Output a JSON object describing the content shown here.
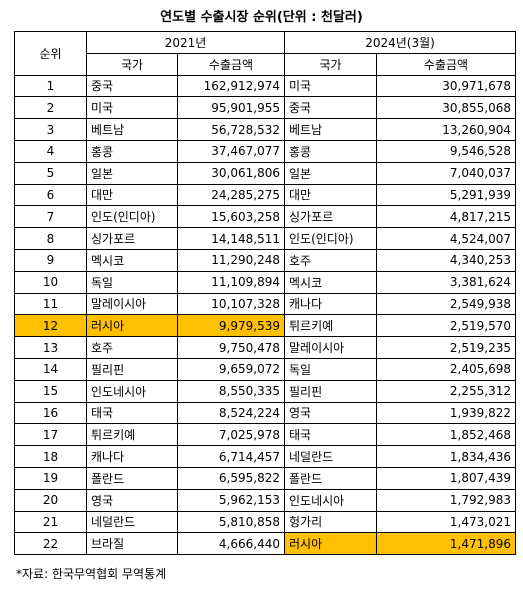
{
  "title": "연도별 수출시장 순위(단위 : 천달러)",
  "headers": {
    "rank": "순위",
    "year_left": "2021년",
    "year_right": "2024년(3월)",
    "country": "국가",
    "amount": "수출금액"
  },
  "highlight_color": "#ffc000",
  "rows": [
    {
      "rank": "1",
      "c1": "중국",
      "v1": "162,912,974",
      "c2": "미국",
      "v2": "30,971,678",
      "hl1": false,
      "hl2": false
    },
    {
      "rank": "2",
      "c1": "미국",
      "v1": "95,901,955",
      "c2": "중국",
      "v2": "30,855,068",
      "hl1": false,
      "hl2": false
    },
    {
      "rank": "3",
      "c1": "베트남",
      "v1": "56,728,532",
      "c2": "베트남",
      "v2": "13,260,904",
      "hl1": false,
      "hl2": false
    },
    {
      "rank": "4",
      "c1": "홍콩",
      "v1": "37,467,077",
      "c2": "홍콩",
      "v2": "9,546,528",
      "hl1": false,
      "hl2": false
    },
    {
      "rank": "5",
      "c1": "일본",
      "v1": "30,061,806",
      "c2": "일본",
      "v2": "7,040,037",
      "hl1": false,
      "hl2": false
    },
    {
      "rank": "6",
      "c1": "대만",
      "v1": "24,285,275",
      "c2": "대만",
      "v2": "5,291,939",
      "hl1": false,
      "hl2": false
    },
    {
      "rank": "7",
      "c1": "인도(인디아)",
      "v1": "15,603,258",
      "c2": "싱가포르",
      "v2": "4,817,215",
      "hl1": false,
      "hl2": false
    },
    {
      "rank": "8",
      "c1": "싱가포르",
      "v1": "14,148,511",
      "c2": "인도(인디아)",
      "v2": "4,524,007",
      "hl1": false,
      "hl2": false
    },
    {
      "rank": "9",
      "c1": "멕시코",
      "v1": "11,290,248",
      "c2": "호주",
      "v2": "4,340,253",
      "hl1": false,
      "hl2": false
    },
    {
      "rank": "10",
      "c1": "독일",
      "v1": "11,109,894",
      "c2": "멕시코",
      "v2": "3,381,624",
      "hl1": false,
      "hl2": false
    },
    {
      "rank": "11",
      "c1": "말레이시아",
      "v1": "10,107,328",
      "c2": "캐나다",
      "v2": "2,549,938",
      "hl1": false,
      "hl2": false
    },
    {
      "rank": "12",
      "c1": "러시아",
      "v1": "9,979,539",
      "c2": "튀르키예",
      "v2": "2,519,570",
      "hl1": true,
      "hl2": false
    },
    {
      "rank": "13",
      "c1": "호주",
      "v1": "9,750,478",
      "c2": "말레이시아",
      "v2": "2,519,235",
      "hl1": false,
      "hl2": false
    },
    {
      "rank": "14",
      "c1": "필리핀",
      "v1": "9,659,072",
      "c2": "독일",
      "v2": "2,405,698",
      "hl1": false,
      "hl2": false
    },
    {
      "rank": "15",
      "c1": "인도네시아",
      "v1": "8,550,335",
      "c2": "필리핀",
      "v2": "2,255,312",
      "hl1": false,
      "hl2": false
    },
    {
      "rank": "16",
      "c1": "태국",
      "v1": "8,524,224",
      "c2": "영국",
      "v2": "1,939,822",
      "hl1": false,
      "hl2": false
    },
    {
      "rank": "17",
      "c1": "튀르키예",
      "v1": "7,025,978",
      "c2": "태국",
      "v2": "1,852,468",
      "hl1": false,
      "hl2": false
    },
    {
      "rank": "18",
      "c1": "캐나다",
      "v1": "6,714,457",
      "c2": "네덜란드",
      "v2": "1,834,436",
      "hl1": false,
      "hl2": false
    },
    {
      "rank": "19",
      "c1": "폴란드",
      "v1": "6,595,822",
      "c2": "폴란드",
      "v2": "1,807,439",
      "hl1": false,
      "hl2": false
    },
    {
      "rank": "20",
      "c1": "영국",
      "v1": "5,962,153",
      "c2": "인도네시아",
      "v2": "1,792,983",
      "hl1": false,
      "hl2": false
    },
    {
      "rank": "21",
      "c1": "네덜란드",
      "v1": "5,810,858",
      "c2": "헝가리",
      "v2": "1,473,021",
      "hl1": false,
      "hl2": false
    },
    {
      "rank": "22",
      "c1": "브라질",
      "v1": "4,666,440",
      "c2": "러시아",
      "v2": "1,471,896",
      "hl1": false,
      "hl2": true
    }
  ],
  "source_note": "*자료: 한국무역협회 무역통계"
}
